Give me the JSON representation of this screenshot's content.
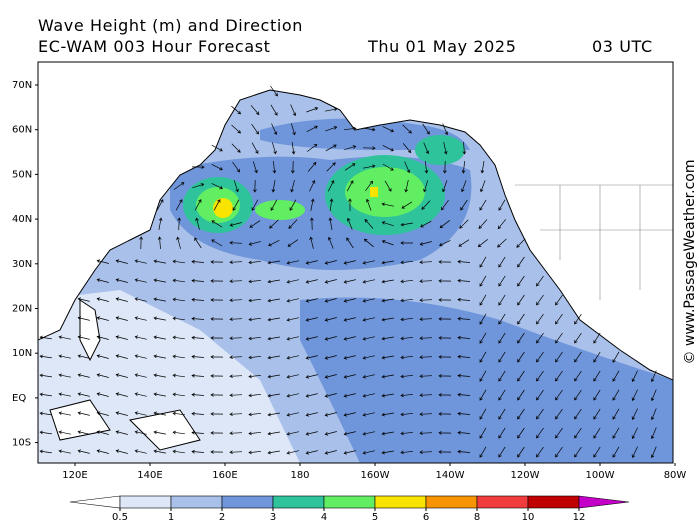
{
  "title": "Wave Height (m) and Direction",
  "subtitle": {
    "model": "EC-WAM 003 Hour Forecast",
    "date": "Thu 01 May 2025",
    "time": "03 UTC"
  },
  "lat_labels": [
    "70N",
    "60N",
    "50N",
    "40N",
    "30N",
    "20N",
    "10N",
    "EQ",
    "10S"
  ],
  "lon_labels": [
    "120E",
    "140E",
    "160E",
    "180",
    "160W",
    "140W",
    "120W",
    "100W",
    "80W"
  ],
  "colorbar": {
    "ticks": [
      0.5,
      1,
      2,
      3,
      4,
      5,
      6,
      8,
      10,
      12
    ],
    "colors": [
      "#dde7f8",
      "#a9c1ea",
      "#6f95da",
      "#2fc39b",
      "#62ee62",
      "#f8e400",
      "#f89400",
      "#f03c3c",
      "#c00000"
    ],
    "under_color": "#ffffff",
    "over_color": "#c400c8"
  },
  "credit": "© www.PassageWeather.com"
}
